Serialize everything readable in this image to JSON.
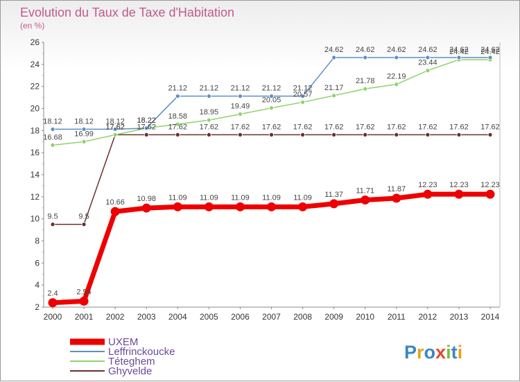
{
  "chart_data": {
    "type": "line",
    "title": "Evolution du Taux de Taxe d'Habitation",
    "subtitle": "(en %)",
    "categories": [
      "2000",
      "2001",
      "2002",
      "2003",
      "2004",
      "2005",
      "2006",
      "2007",
      "2008",
      "2009",
      "2010",
      "2011",
      "2012",
      "2013",
      "2014"
    ],
    "ylim": [
      2,
      26
    ],
    "yticks": [
      2,
      4,
      6,
      8,
      10,
      12,
      14,
      16,
      18,
      20,
      22,
      24,
      26
    ],
    "grid": false,
    "legend_position": "bottom-left",
    "series": [
      {
        "name": "UXEM",
        "color": "#ee0000",
        "values": [
          2.4,
          2.54,
          10.66,
          10.98,
          11.09,
          11.09,
          11.09,
          11.09,
          11.09,
          11.37,
          11.71,
          11.87,
          12.23,
          12.23,
          12.23
        ],
        "labels": [
          "2.4",
          "2.54",
          "10.66",
          "10.98",
          "11.09",
          "11.09",
          "11.09",
          "11.09",
          "11.09",
          "11.37",
          "11.71",
          "11.87",
          "12.23",
          "12.23",
          "12.23"
        ]
      },
      {
        "name": "Leffrinckoucke",
        "color": "#5b8fc7",
        "values": [
          18.12,
          18.12,
          18.12,
          18.22,
          21.12,
          21.12,
          21.12,
          21.12,
          21.12,
          24.62,
          24.62,
          24.62,
          24.62,
          24.62,
          24.62
        ],
        "labels": [
          "18.12",
          "18.12",
          "18.12",
          "18.22",
          "21.12",
          "21.12",
          "21.12",
          "21.12",
          "21.12",
          "24.62",
          "24.62",
          "24.62",
          "24.62",
          "24.62",
          "24.62"
        ]
      },
      {
        "name": "Téteghem",
        "color": "#8fd26a",
        "values": [
          16.68,
          16.99,
          17.62,
          18.22,
          18.58,
          18.95,
          19.49,
          20.05,
          20.57,
          21.17,
          21.78,
          22.19,
          23.44,
          24.42,
          24.42
        ],
        "labels": [
          "16.68",
          "16.99",
          "17.62",
          "18.22",
          "18.58",
          "18.95",
          "19.49",
          "20.05",
          "20.57",
          "21.17",
          "21.78",
          "22.19",
          "23.44",
          "24.42",
          "24.42"
        ]
      },
      {
        "name": "Ghyvelde",
        "color": "#6b2f2f",
        "values": [
          9.5,
          9.5,
          17.62,
          17.62,
          17.62,
          17.62,
          17.62,
          17.62,
          17.62,
          17.62,
          17.62,
          17.62,
          17.62,
          17.62,
          17.62
        ],
        "labels": [
          "9.5",
          "9.5",
          "17.62",
          "17.62",
          "17.62",
          "17.62",
          "17.62",
          "17.62",
          "17.62",
          "17.62",
          "17.62",
          "17.62",
          "17.62",
          "17.62",
          "17.62"
        ]
      }
    ]
  },
  "watermark": "Proxiti"
}
